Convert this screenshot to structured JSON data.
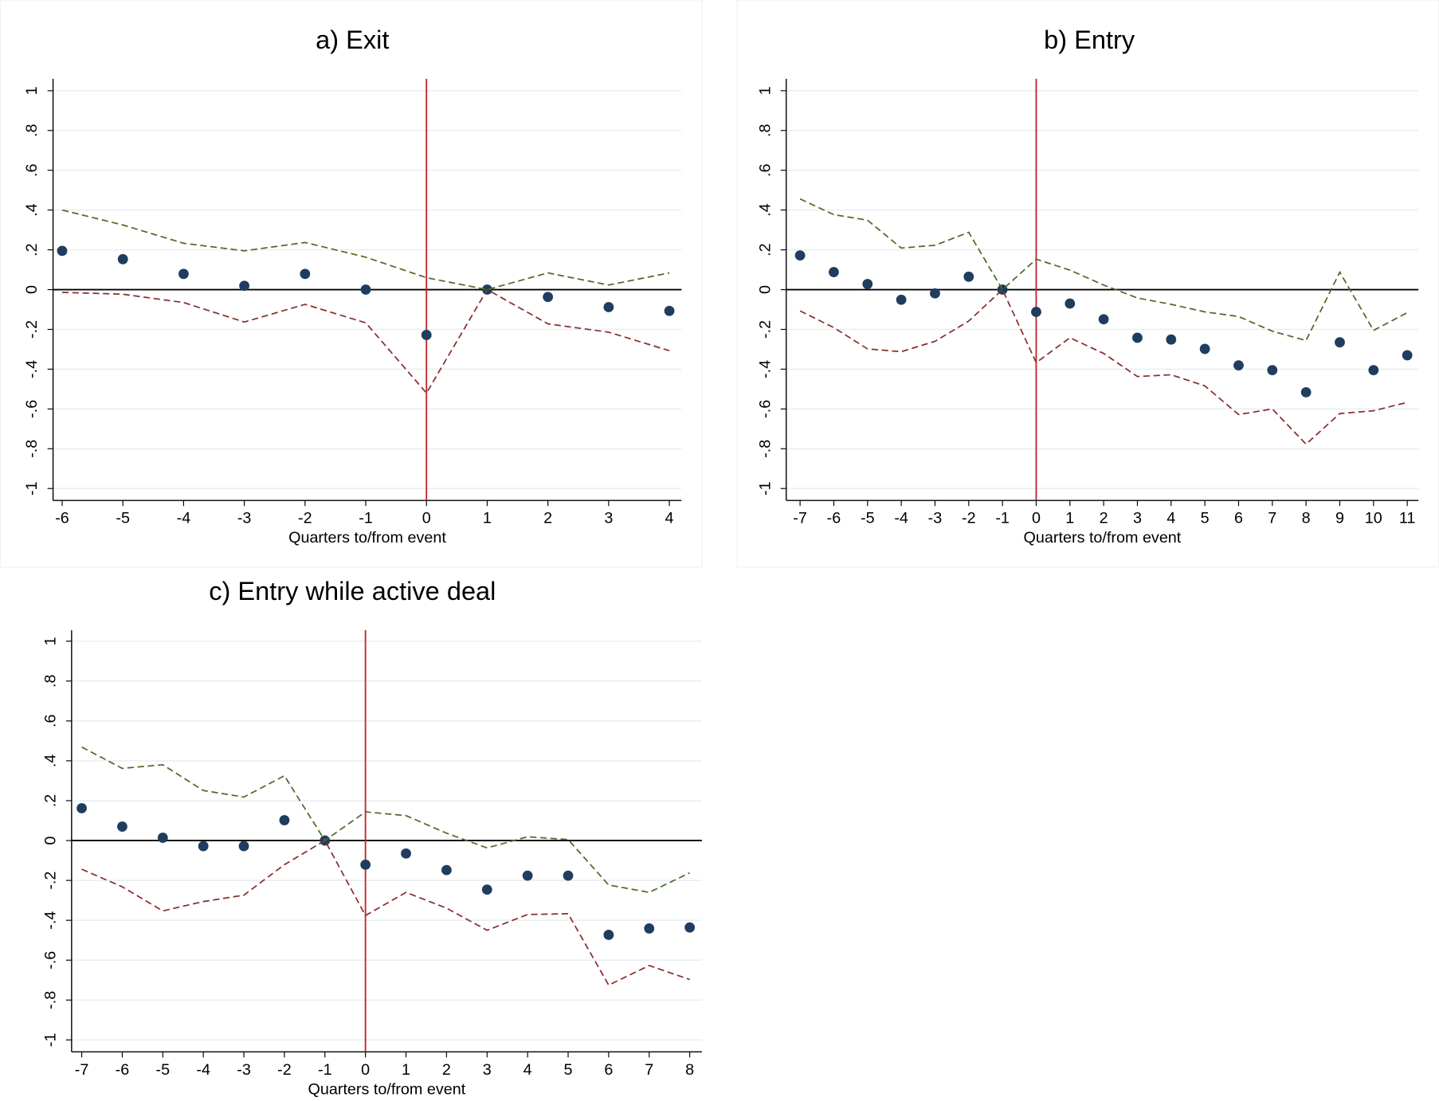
{
  "chart_data": [
    {
      "type": "scatter",
      "title": "a) Exit",
      "xlabel": "Quarters to/from event",
      "x": [
        -6,
        -5,
        -4,
        -3,
        -2,
        -1,
        0,
        1,
        2,
        3,
        4
      ],
      "series": [
        {
          "style": "marker",
          "color": "#1f3d5e",
          "values": [
            0.195,
            0.153,
            0.079,
            0.019,
            0.079,
            0,
            -0.228,
            0,
            -0.037,
            -0.088,
            -0.107
          ]
        },
        {
          "style": "dashed",
          "color": "#4f6b2a",
          "values": [
            0.4,
            0.325,
            0.233,
            0.195,
            0.237,
            0.163,
            0.06,
            0,
            0.084,
            0.023,
            0.084
          ]
        },
        {
          "style": "dashed",
          "color": "#8b2e2e",
          "values": [
            -0.014,
            -0.023,
            -0.065,
            -0.163,
            -0.074,
            -0.167,
            -0.52,
            0,
            -0.172,
            -0.214,
            -0.307
          ]
        }
      ],
      "xlim": [
        -6.15,
        4.2
      ],
      "ylim": [
        -1.06,
        1.06
      ],
      "xticks": [
        -6,
        -5,
        -4,
        -3,
        -2,
        -1,
        0,
        1,
        2,
        3,
        4
      ],
      "yticks": [
        -1,
        {
          "value": -0.8,
          "label": "-.8"
        },
        {
          "value": -0.6,
          "label": "-.6"
        },
        {
          "value": -0.4,
          "label": "-.4"
        },
        {
          "value": -0.2,
          "label": "-.2"
        },
        0,
        {
          "value": 0.2,
          "label": ".2"
        },
        {
          "value": 0.4,
          "label": ".4"
        },
        {
          "value": 0.6,
          "label": ".6"
        },
        {
          "value": 0.8,
          "label": ".8"
        },
        1
      ],
      "grid": true,
      "hline": 0,
      "hline_color": "#000000",
      "vline": 0,
      "vline_color": "#c0282d"
    },
    {
      "type": "scatter",
      "title": "b) Entry",
      "xlabel": "Quarters to/from event",
      "x": [
        -7,
        -6,
        -5,
        -4,
        -3,
        -2,
        -1,
        0,
        1,
        2,
        3,
        4,
        5,
        6,
        7,
        8,
        9,
        10,
        11
      ],
      "series": [
        {
          "style": "marker",
          "color": "#1f3d5e",
          "values": [
            0.172,
            0.088,
            0.028,
            -0.051,
            -0.019,
            0.065,
            0,
            -0.112,
            -0.07,
            -0.149,
            -0.242,
            -0.251,
            -0.298,
            -0.381,
            -0.405,
            -0.516,
            -0.265,
            -0.405,
            -0.33
          ]
        },
        {
          "style": "dashed",
          "color": "#4f6b2a",
          "values": [
            0.456,
            0.377,
            0.349,
            0.209,
            0.223,
            0.288,
            0,
            0.153,
            0.098,
            0.023,
            -0.042,
            -0.074,
            -0.112,
            -0.135,
            -0.209,
            -0.256,
            0.088,
            -0.205,
            -0.116
          ]
        },
        {
          "style": "dashed",
          "color": "#8b2e2e",
          "values": [
            -0.107,
            -0.191,
            -0.298,
            -0.312,
            -0.26,
            -0.158,
            0,
            -0.367,
            -0.242,
            -0.321,
            -0.437,
            -0.428,
            -0.484,
            -0.628,
            -0.6,
            -0.777,
            -0.623,
            -0.609,
            -0.567
          ]
        }
      ],
      "xlim": [
        -7.41,
        11.33
      ],
      "ylim": [
        -1.06,
        1.06
      ],
      "xticks": [
        -7,
        -6,
        -5,
        -4,
        -3,
        -2,
        -1,
        0,
        1,
        2,
        3,
        4,
        5,
        6,
        7,
        8,
        9,
        10,
        11
      ],
      "yticks": [
        -1,
        {
          "value": -0.8,
          "label": "-.8"
        },
        {
          "value": -0.6,
          "label": "-.6"
        },
        {
          "value": -0.4,
          "label": "-.4"
        },
        {
          "value": -0.2,
          "label": "-.2"
        },
        0,
        {
          "value": 0.2,
          "label": ".2"
        },
        {
          "value": 0.4,
          "label": ".4"
        },
        {
          "value": 0.6,
          "label": ".6"
        },
        {
          "value": 0.8,
          "label": ".8"
        },
        1
      ],
      "grid": true,
      "hline": 0,
      "hline_color": "#000000",
      "vline": 0,
      "vline_color": "#c0282d"
    },
    {
      "type": "scatter",
      "title": "c) Entry while active deal",
      "xlabel": "Quarters to/from event",
      "x": [
        -7,
        -6,
        -5,
        -4,
        -3,
        -2,
        -1,
        0,
        1,
        2,
        3,
        4,
        5,
        6,
        7,
        8
      ],
      "series": [
        {
          "style": "marker",
          "color": "#1f3d5e",
          "values": [
            0.162,
            0.07,
            0.014,
            -0.028,
            -0.028,
            0.102,
            0,
            -0.121,
            -0.065,
            -0.148,
            -0.246,
            -0.176,
            -0.176,
            -0.473,
            -0.441,
            -0.436
          ]
        },
        {
          "style": "dashed",
          "color": "#4f6b2a",
          "values": [
            0.469,
            0.362,
            0.38,
            0.251,
            0.218,
            0.325,
            0,
            0.144,
            0.125,
            0.037,
            -0.037,
            0.019,
            0.005,
            -0.223,
            -0.26,
            -0.162
          ]
        },
        {
          "style": "dashed",
          "color": "#8b2e2e",
          "values": [
            -0.144,
            -0.232,
            -0.353,
            -0.306,
            -0.274,
            -0.121,
            0,
            -0.376,
            -0.26,
            -0.339,
            -0.45,
            -0.371,
            -0.367,
            -0.725,
            -0.627,
            -0.697
          ]
        }
      ],
      "xlim": [
        -7.25,
        8.3
      ],
      "ylim": [
        -1.06,
        1.055
      ],
      "xticks": [
        -7,
        -6,
        -5,
        -4,
        -3,
        -2,
        -1,
        0,
        1,
        2,
        3,
        4,
        5,
        6,
        7,
        8
      ],
      "yticks": [
        -1,
        {
          "value": -0.8,
          "label": "-.8"
        },
        {
          "value": -0.6,
          "label": "-.6"
        },
        {
          "value": -0.4,
          "label": "-.4"
        },
        {
          "value": -0.2,
          "label": "-.2"
        },
        0,
        {
          "value": 0.2,
          "label": ".2"
        },
        {
          "value": 0.4,
          "label": ".4"
        },
        {
          "value": 0.6,
          "label": ".6"
        },
        {
          "value": 0.8,
          "label": ".8"
        },
        1
      ],
      "grid": true,
      "hline": 0,
      "hline_color": "#000000",
      "vline": 0,
      "vline_color": "#c0282d"
    }
  ]
}
